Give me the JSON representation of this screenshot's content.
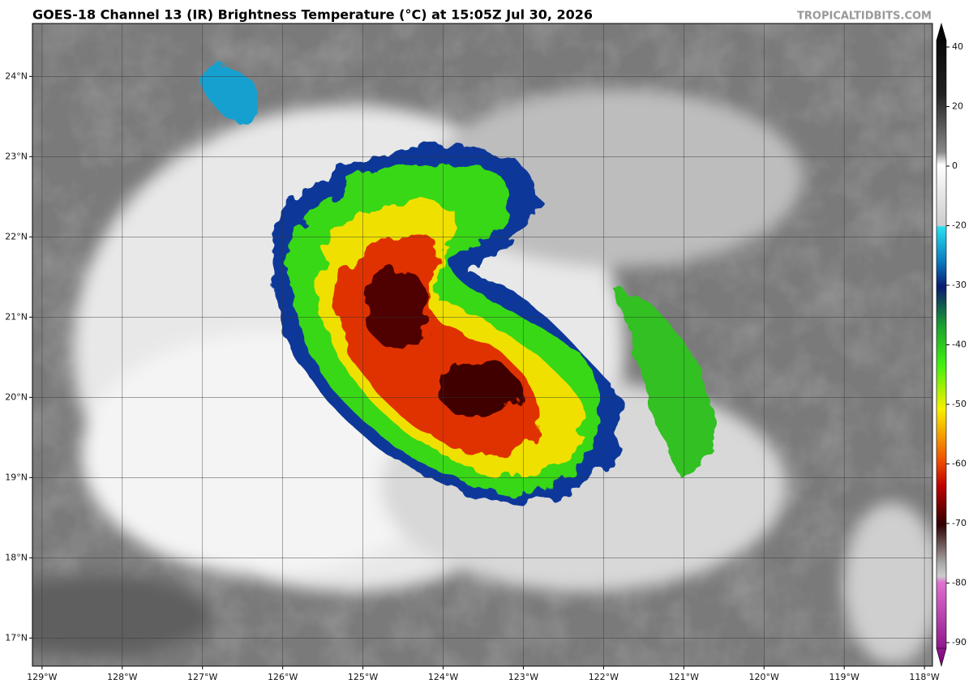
{
  "map": {
    "title": "GOES-18 Channel 13 (IR) Brightness Temperature (°C) at 15:05Z Jul 30, 2026",
    "credit": "TROPICALTIDBITS.COM",
    "xlim": [
      -129.12,
      -117.9
    ],
    "ylim": [
      16.65,
      24.66
    ],
    "xticks": [
      {
        "value": -129,
        "label": "129°W"
      },
      {
        "value": -128,
        "label": "128°W"
      },
      {
        "value": -127,
        "label": "127°W"
      },
      {
        "value": -126,
        "label": "126°W"
      },
      {
        "value": -125,
        "label": "125°W"
      },
      {
        "value": -124,
        "label": "124°W"
      },
      {
        "value": -123,
        "label": "123°W"
      },
      {
        "value": -122,
        "label": "122°W"
      },
      {
        "value": -121,
        "label": "121°W"
      },
      {
        "value": -120,
        "label": "120°W"
      },
      {
        "value": -119,
        "label": "119°W"
      },
      {
        "value": -118,
        "label": "118°W"
      }
    ],
    "yticks": [
      {
        "value": 17,
        "label": "17°N"
      },
      {
        "value": 18,
        "label": "18°N"
      },
      {
        "value": 19,
        "label": "19°N"
      },
      {
        "value": 20,
        "label": "20°N"
      },
      {
        "value": 21,
        "label": "21°N"
      },
      {
        "value": 22,
        "label": "22°N"
      },
      {
        "value": 23,
        "label": "23°N"
      },
      {
        "value": 24,
        "label": "24°N"
      }
    ],
    "colorbar_ticks": [
      40,
      20,
      0,
      -20,
      -30,
      -40,
      -50,
      -60,
      -70,
      -80,
      -90
    ]
  }
}
